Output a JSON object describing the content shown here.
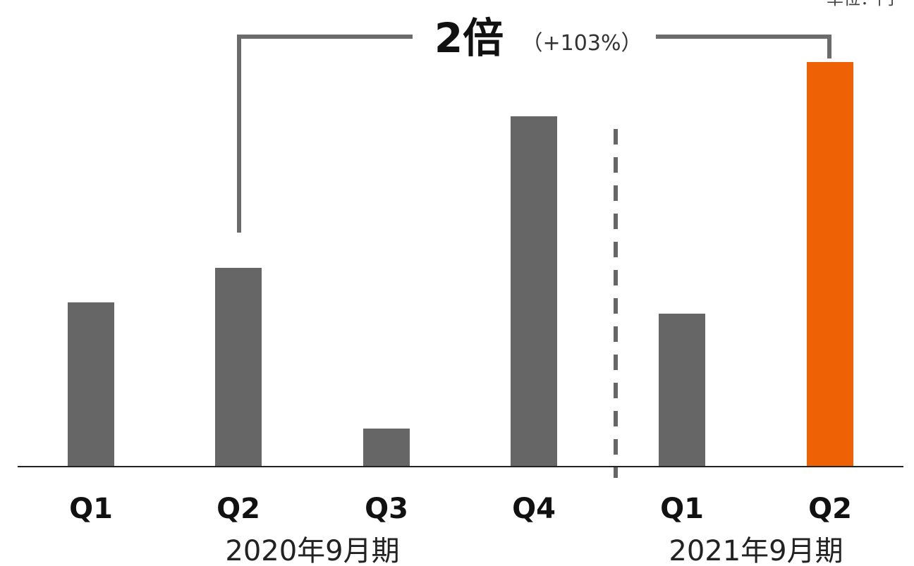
{
  "chart_data": {
    "type": "bar",
    "categories": [
      "Q1",
      "Q2",
      "Q3",
      "Q4",
      "Q1",
      "Q2"
    ],
    "values": [
      233,
      282,
      54,
      497,
      217,
      574
    ],
    "periods": [
      {
        "label": "2020年9月期",
        "categories": [
          0,
          1,
          2,
          3
        ]
      },
      {
        "label": "2021年9月期",
        "categories": [
          4,
          5
        ]
      }
    ],
    "highlight_index": 5,
    "colors": {
      "base": "#666666",
      "highlight": "#EE6104"
    },
    "annotation": {
      "from_index": 1,
      "to_index": 5,
      "multiple": "2倍",
      "percent": "（+103%）"
    },
    "unit_label": "単位：円",
    "ylim": [
      0,
      600
    ],
    "grid": false,
    "legend": "none",
    "title": "",
    "xlabel": "",
    "ylabel": ""
  }
}
